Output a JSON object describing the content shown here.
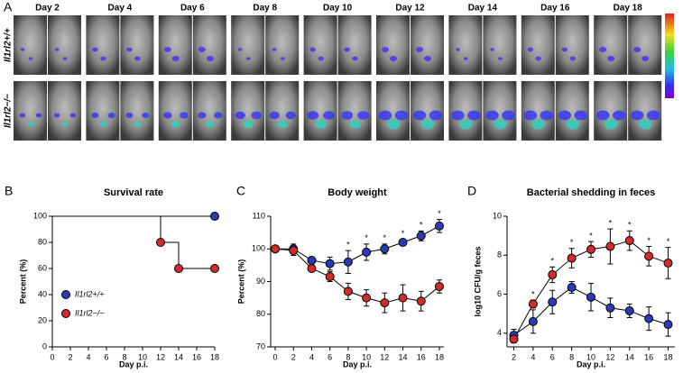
{
  "panel_a": {
    "label": "A",
    "days": [
      "Day 2",
      "Day 4",
      "Day 6",
      "Day 8",
      "Day 10",
      "Day 12",
      "Day 14",
      "Day 16",
      "Day 18"
    ],
    "rows": [
      "Il1rl2+/+",
      "Il1rl2−/−"
    ]
  },
  "chart_data": [
    {
      "type": "step",
      "panel": "B",
      "title": "Survival rate",
      "x_label": "Day p.i.",
      "y_label": "Percent (%)",
      "xlim": [
        0,
        18
      ],
      "xticks": [
        0,
        2,
        4,
        6,
        8,
        10,
        12,
        14,
        16,
        18
      ],
      "ylim": [
        0,
        100
      ],
      "yticks": [
        0,
        20,
        40,
        60,
        80,
        100
      ],
      "legend": "lower left",
      "series": [
        {
          "name": "Il1rl2+/+",
          "color": "#2b3bb8",
          "x": [
            0,
            18
          ],
          "values": [
            100,
            100
          ]
        },
        {
          "name": "Il1rl2−/−",
          "color": "#d42a2a",
          "x": [
            0,
            12,
            14,
            18
          ],
          "values": [
            100,
            80,
            60,
            60
          ]
        }
      ]
    },
    {
      "type": "line",
      "panel": "C",
      "title": "Body weight",
      "x_label": "Day p.i.",
      "y_label": "Percent (%)",
      "x": [
        0,
        2,
        4,
        6,
        8,
        10,
        12,
        14,
        16,
        18
      ],
      "xlim": [
        -0.5,
        18.5
      ],
      "xticks": [
        0,
        2,
        4,
        6,
        8,
        10,
        12,
        14,
        16,
        18
      ],
      "ylim": [
        70,
        110
      ],
      "yticks": [
        70,
        80,
        90,
        100,
        110
      ],
      "series": [
        {
          "color": "#2b3bb8",
          "values": [
            100,
            100,
            96.5,
            95.5,
            96,
            99,
            100,
            102,
            104,
            107
          ],
          "errors": [
            0.5,
            1.5,
            1,
            2,
            3.5,
            2.5,
            1.5,
            1,
            1.5,
            2
          ]
        },
        {
          "color": "#d42a2a",
          "values": [
            100,
            99.5,
            94,
            91.5,
            87,
            85,
            83.5,
            85,
            84,
            88.5
          ],
          "errors": [
            0.5,
            1.5,
            1,
            1.5,
            2.5,
            2.5,
            3,
            4,
            3,
            2
          ]
        }
      ],
      "annotations": [
        {
          "x": 8,
          "text": "*"
        },
        {
          "x": 10,
          "text": "*"
        },
        {
          "x": 12,
          "text": "*"
        },
        {
          "x": 14,
          "text": "*"
        },
        {
          "x": 16,
          "text": "*"
        },
        {
          "x": 18,
          "text": "*"
        }
      ]
    },
    {
      "type": "line",
      "panel": "D",
      "title": "Bacterial shedding in feces",
      "x_label": "Day p.i.",
      "y_label": "log10 CFU/g feces",
      "x": [
        2,
        4,
        6,
        8,
        10,
        12,
        14,
        16,
        18
      ],
      "xlim": [
        1.3,
        18.7
      ],
      "xticks": [
        2,
        4,
        6,
        8,
        10,
        12,
        14,
        16,
        18
      ],
      "ylim": [
        3.3,
        10
      ],
      "yticks": [
        4,
        6,
        8,
        10
      ],
      "series": [
        {
          "color": "#2b3bb8",
          "values": [
            3.9,
            4.6,
            5.6,
            6.35,
            5.85,
            5.3,
            5.15,
            4.75,
            4.45
          ],
          "errors": [
            0.3,
            0.6,
            0.6,
            0.3,
            0.7,
            0.5,
            0.35,
            0.6,
            0.6
          ]
        },
        {
          "color": "#d42a2a",
          "values": [
            3.7,
            5.5,
            7.0,
            7.85,
            8.3,
            8.45,
            8.75,
            7.95,
            7.6
          ],
          "errors": [
            0.2,
            0.2,
            0.4,
            0.5,
            0.4,
            0.9,
            0.5,
            0.5,
            0.8
          ]
        }
      ],
      "annotations": [
        {
          "x": 4,
          "text": "*"
        },
        {
          "x": 6,
          "text": "*"
        },
        {
          "x": 8,
          "text": "*"
        },
        {
          "x": 10,
          "text": "*"
        },
        {
          "x": 12,
          "text": "*"
        },
        {
          "x": 14,
          "text": "*"
        },
        {
          "x": 16,
          "text": "*"
        },
        {
          "x": 18,
          "text": "*"
        }
      ]
    }
  ]
}
